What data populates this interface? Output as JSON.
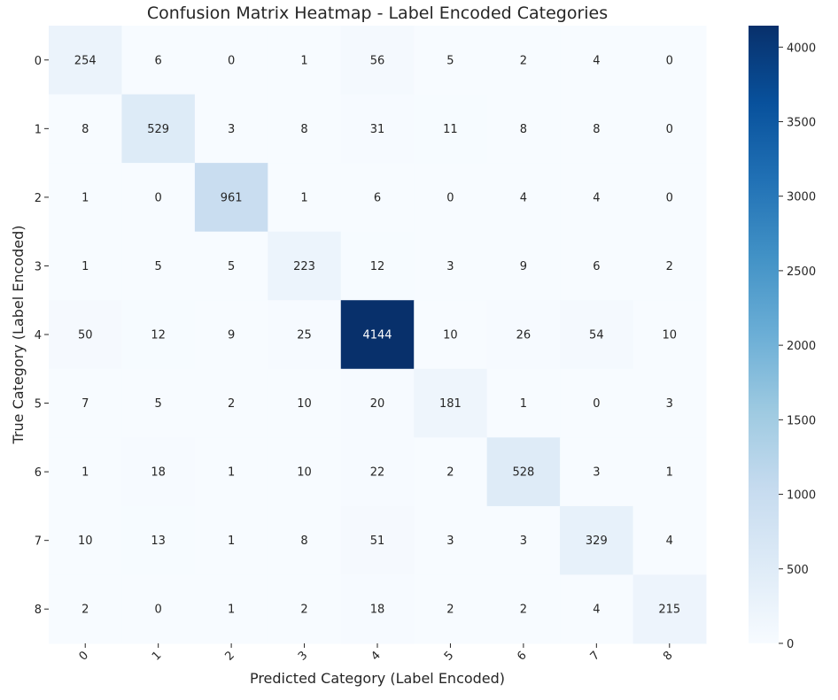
{
  "chart_data": {
    "type": "heatmap",
    "title": "Confusion Matrix Heatmap - Label Encoded Categories",
    "xlabel": "Predicted Category (Label Encoded)",
    "ylabel": "True Category (Label Encoded)",
    "x_categories": [
      "0",
      "1",
      "2",
      "3",
      "4",
      "5",
      "6",
      "7",
      "8"
    ],
    "y_categories": [
      "0",
      "1",
      "2",
      "3",
      "4",
      "5",
      "6",
      "7",
      "8"
    ],
    "values": [
      [
        254,
        6,
        0,
        1,
        56,
        5,
        2,
        4,
        0
      ],
      [
        8,
        529,
        3,
        8,
        31,
        11,
        8,
        8,
        0
      ],
      [
        1,
        0,
        961,
        1,
        6,
        0,
        4,
        4,
        0
      ],
      [
        1,
        5,
        5,
        223,
        12,
        3,
        9,
        6,
        2
      ],
      [
        50,
        12,
        9,
        25,
        4144,
        10,
        26,
        54,
        10
      ],
      [
        7,
        5,
        2,
        10,
        20,
        181,
        1,
        0,
        3
      ],
      [
        1,
        18,
        1,
        10,
        22,
        2,
        528,
        3,
        1
      ],
      [
        10,
        13,
        1,
        8,
        51,
        3,
        3,
        329,
        4
      ],
      [
        2,
        0,
        1,
        2,
        18,
        2,
        2,
        4,
        215
      ]
    ],
    "colormap": "Blues",
    "color_low": "#f7fbff",
    "color_high": "#08306b",
    "colorbar": {
      "range": [
        0,
        4144
      ],
      "ticks": [
        "0",
        "500",
        "1000",
        "1500",
        "2000",
        "2500",
        "3000",
        "3500",
        "4000"
      ]
    },
    "annot_dark_color": "#262626",
    "annot_light_color": "#ffffff"
  }
}
